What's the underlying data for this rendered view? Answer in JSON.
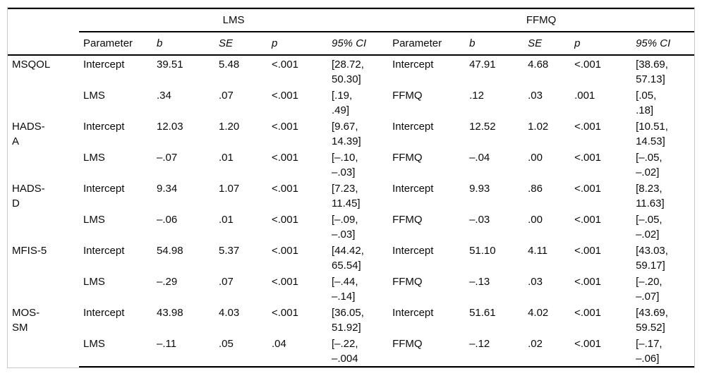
{
  "figure": {
    "groups": {
      "lms": "LMS",
      "ffmq": "FFMQ"
    },
    "headers": {
      "parameter": "Parameter",
      "b": "b",
      "se": "SE",
      "p": "p",
      "ci": "95% CI",
      "parameter2": "Parameter",
      "b2": "b",
      "se2": "SE",
      "p2": "p",
      "ci2": "95% CI"
    },
    "body": [
      {
        "outcome": "MSQOL",
        "a": [
          "Intercept",
          "39.51",
          "5.48",
          "<.001",
          "[28.72,\n50.30]",
          "Intercept",
          "47.91",
          "4.68",
          "<.001",
          "[38.69,\n57.13]"
        ],
        "b": [
          "LMS",
          ".34",
          ".07",
          "<.001",
          "[.19,\n.49]",
          "FFMQ",
          ".12",
          ".03",
          ".001",
          "[.05,\n.18]"
        ]
      },
      {
        "outcome": "HADS-\nA",
        "a": [
          "Intercept",
          "12.03",
          "1.20",
          "<.001",
          "[9.67,\n14.39]",
          "Intercept",
          "12.52",
          "1.02",
          "<.001",
          "[10.51,\n14.53]"
        ],
        "b": [
          "LMS",
          "–.07",
          ".01",
          "<.001",
          "[–.10,\n–.03]",
          "FFMQ",
          "–.04",
          ".00",
          "<.001",
          "[–.05,\n–.02]"
        ]
      },
      {
        "outcome": "HADS-\nD",
        "a": [
          "Intercept",
          "9.34",
          "1.07",
          "<.001",
          "[7.23,\n11.45]",
          "Intercept",
          "9.93",
          ".86",
          "<.001",
          "[8.23,\n11.63]"
        ],
        "b": [
          "LMS",
          "–.06",
          ".01",
          "<.001",
          "[–.09,\n–.03]",
          "FFMQ",
          "–.03",
          ".00",
          "<.001",
          "[–.05,\n–.02]"
        ]
      },
      {
        "outcome": "MFIS-5",
        "a": [
          "Intercept",
          "54.98",
          "5.37",
          "<.001",
          "[44.42,\n65.54]",
          "Intercept",
          "51.10",
          "4.11",
          "<.001",
          "[43.03,\n59.17]"
        ],
        "b": [
          "LMS",
          "–.29",
          ".07",
          "<.001",
          "[–.44,\n–.14]",
          "FFMQ",
          "–.13",
          ".03",
          "<.001",
          "[–.20,\n–.07]"
        ]
      },
      {
        "outcome": "MOS-\nSM",
        "a": [
          "Intercept",
          "43.98",
          "4.03",
          "<.001",
          "[36.05,\n51.92]",
          "Intercept",
          "51.61",
          "4.02",
          "<.001",
          "[43.69,\n59.52]"
        ],
        "b": [
          "LMS",
          "–.11",
          ".05",
          ".04",
          "[–.22,\n–.004",
          "FFMQ",
          "–.12",
          ".02",
          "<.001",
          "[–.17,\n–.06]"
        ]
      }
    ]
  }
}
